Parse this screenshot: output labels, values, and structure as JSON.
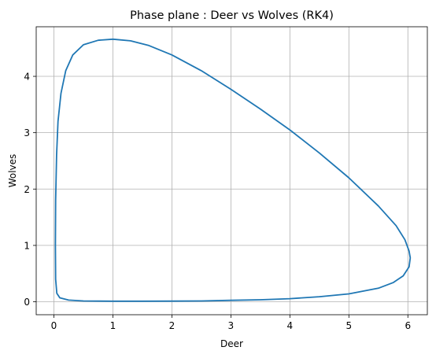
{
  "chart_data": {
    "type": "line",
    "title": "Phase plane : Deer vs Wolves (RK4)",
    "xlabel": "Deer",
    "ylabel": "Wolves",
    "xlim": [
      -0.3,
      6.33
    ],
    "ylim": [
      -0.23,
      4.88
    ],
    "xticks": [
      0,
      1,
      2,
      3,
      4,
      5,
      6
    ],
    "yticks": [
      0,
      1,
      2,
      3,
      4
    ],
    "grid": true,
    "colors": {
      "line": "#1f77b4"
    },
    "series": [
      {
        "closed": true,
        "points": [
          [
            1.0,
            4.66
          ],
          [
            1.3,
            4.63
          ],
          [
            1.6,
            4.55
          ],
          [
            2.0,
            4.38
          ],
          [
            2.5,
            4.1
          ],
          [
            3.0,
            3.77
          ],
          [
            3.5,
            3.42
          ],
          [
            4.0,
            3.05
          ],
          [
            4.5,
            2.64
          ],
          [
            5.0,
            2.2
          ],
          [
            5.5,
            1.7
          ],
          [
            5.8,
            1.35
          ],
          [
            5.95,
            1.1
          ],
          [
            6.02,
            0.9
          ],
          [
            6.04,
            0.78
          ],
          [
            6.02,
            0.62
          ],
          [
            5.92,
            0.46
          ],
          [
            5.75,
            0.34
          ],
          [
            5.5,
            0.24
          ],
          [
            5.0,
            0.14
          ],
          [
            4.5,
            0.09
          ],
          [
            4.0,
            0.055
          ],
          [
            3.5,
            0.035
          ],
          [
            3.0,
            0.025
          ],
          [
            2.5,
            0.015
          ],
          [
            2.0,
            0.012
          ],
          [
            1.5,
            0.01
          ],
          [
            1.0,
            0.01
          ],
          [
            0.5,
            0.015
          ],
          [
            0.25,
            0.03
          ],
          [
            0.1,
            0.07
          ],
          [
            0.05,
            0.15
          ],
          [
            0.03,
            0.4
          ],
          [
            0.025,
            1.0
          ],
          [
            0.03,
            1.8
          ],
          [
            0.045,
            2.6
          ],
          [
            0.07,
            3.2
          ],
          [
            0.12,
            3.7
          ],
          [
            0.2,
            4.1
          ],
          [
            0.32,
            4.38
          ],
          [
            0.5,
            4.56
          ],
          [
            0.75,
            4.64
          ],
          [
            1.0,
            4.66
          ]
        ]
      }
    ]
  }
}
